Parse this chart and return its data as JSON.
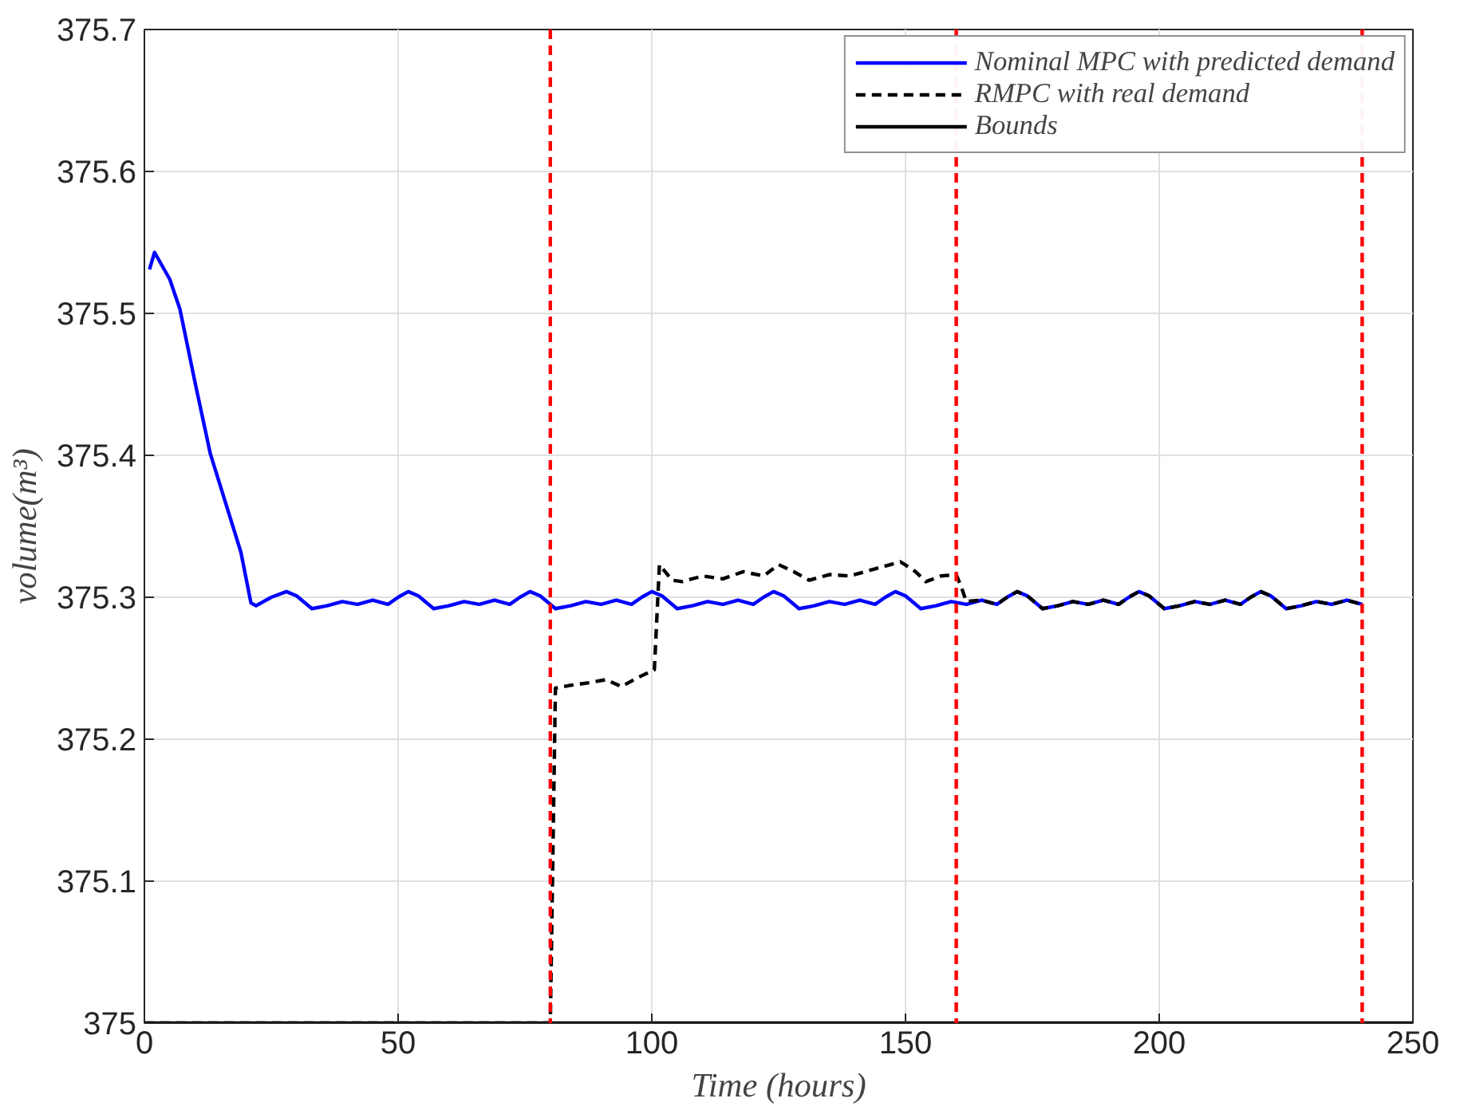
{
  "chart_data": {
    "type": "line",
    "xlabel": "Time (hours)",
    "ylabel": "volume(m³)",
    "xlim": [
      0,
      250
    ],
    "ylim": [
      375,
      375.7
    ],
    "xticks": [
      0,
      50,
      100,
      150,
      200,
      250
    ],
    "yticks": [
      375,
      375.1,
      375.2,
      375.3,
      375.4,
      375.5,
      375.6,
      375.7
    ],
    "grid": true,
    "legend": "top right",
    "marker": "none",
    "series": [
      {
        "name": "Nominal MPC with predicted demand",
        "color": "#0000ff",
        "line_style": "solid",
        "x": [
          1,
          2,
          5,
          7,
          10,
          13,
          19,
          21,
          22,
          25,
          28,
          30,
          33,
          36,
          39,
          42,
          45,
          48,
          50,
          52,
          54,
          57,
          60,
          63,
          66,
          69,
          72,
          74,
          76,
          78,
          81,
          84,
          87,
          90,
          93,
          96,
          98,
          100,
          102,
          105,
          108,
          111,
          114,
          117,
          120,
          122,
          124,
          126,
          129,
          132,
          135,
          138,
          141,
          144,
          146,
          148,
          150,
          153,
          156,
          159,
          162,
          165,
          168,
          170,
          172,
          174,
          177,
          180,
          183,
          186,
          189,
          192,
          194,
          196,
          198,
          201,
          204,
          207,
          210,
          213,
          216,
          218,
          220,
          222,
          225,
          228,
          231,
          234,
          237,
          240
        ],
        "values": [
          375.531,
          375.543,
          375.524,
          375.503,
          375.451,
          375.401,
          375.332,
          375.296,
          375.294,
          375.3,
          375.304,
          375.301,
          375.292,
          375.294,
          375.297,
          375.295,
          375.298,
          375.295,
          375.3,
          375.304,
          375.301,
          375.292,
          375.294,
          375.297,
          375.295,
          375.298,
          375.295,
          375.3,
          375.304,
          375.301,
          375.292,
          375.294,
          375.297,
          375.295,
          375.298,
          375.295,
          375.3,
          375.304,
          375.301,
          375.292,
          375.294,
          375.297,
          375.295,
          375.298,
          375.295,
          375.3,
          375.304,
          375.301,
          375.292,
          375.294,
          375.297,
          375.295,
          375.298,
          375.295,
          375.3,
          375.304,
          375.301,
          375.292,
          375.294,
          375.297,
          375.295,
          375.298,
          375.295,
          375.3,
          375.304,
          375.301,
          375.292,
          375.294,
          375.297,
          375.295,
          375.298,
          375.295,
          375.3,
          375.304,
          375.301,
          375.292,
          375.294,
          375.297,
          375.295,
          375.298,
          375.295,
          375.3,
          375.304,
          375.301,
          375.292,
          375.294,
          375.297,
          375.295,
          375.298,
          375.295
        ]
      },
      {
        "name": "RMPC with real demand",
        "color": "#000000",
        "line_style": "dashed",
        "x": [
          0,
          80,
          81,
          84,
          88,
          91,
          94,
          97,
          100.5,
          101.5,
          104,
          106,
          110,
          114,
          118,
          122,
          125,
          128,
          131,
          135,
          139,
          144,
          149,
          152,
          154,
          157,
          160,
          161,
          162,
          165,
          168,
          170,
          172,
          174,
          177,
          180,
          183,
          186,
          189,
          192,
          194,
          196,
          198,
          201,
          204,
          207,
          210,
          213,
          216,
          218,
          220,
          222,
          225,
          228,
          231,
          234,
          237,
          240
        ],
        "values": [
          375,
          375,
          375.236,
          375.238,
          375.24,
          375.242,
          375.237,
          375.243,
          375.249,
          375.323,
          375.312,
          375.311,
          375.315,
          375.313,
          375.318,
          375.315,
          375.323,
          375.318,
          375.312,
          375.316,
          375.315,
          375.32,
          375.325,
          375.318,
          375.311,
          375.315,
          375.316,
          375.307,
          375.297,
          375.298,
          375.295,
          375.3,
          375.304,
          375.301,
          375.292,
          375.294,
          375.297,
          375.295,
          375.298,
          375.295,
          375.3,
          375.304,
          375.301,
          375.292,
          375.294,
          375.297,
          375.295,
          375.298,
          375.295,
          375.3,
          375.304,
          375.301,
          375.292,
          375.294,
          375.297,
          375.295,
          375.298,
          375.295
        ]
      },
      {
        "name": "Bounds",
        "color": "#000000",
        "line_style": "solid",
        "x": [
          0,
          250
        ],
        "values": [
          375,
          375
        ]
      }
    ],
    "ref_lines": [
      {
        "axis": "x",
        "value": 80,
        "color": "#ff0000",
        "line_style": "dashed"
      },
      {
        "axis": "x",
        "value": 160,
        "color": "#ff0000",
        "line_style": "dashed"
      },
      {
        "axis": "x",
        "value": 240,
        "color": "#ff0000",
        "line_style": "dashed"
      }
    ]
  }
}
